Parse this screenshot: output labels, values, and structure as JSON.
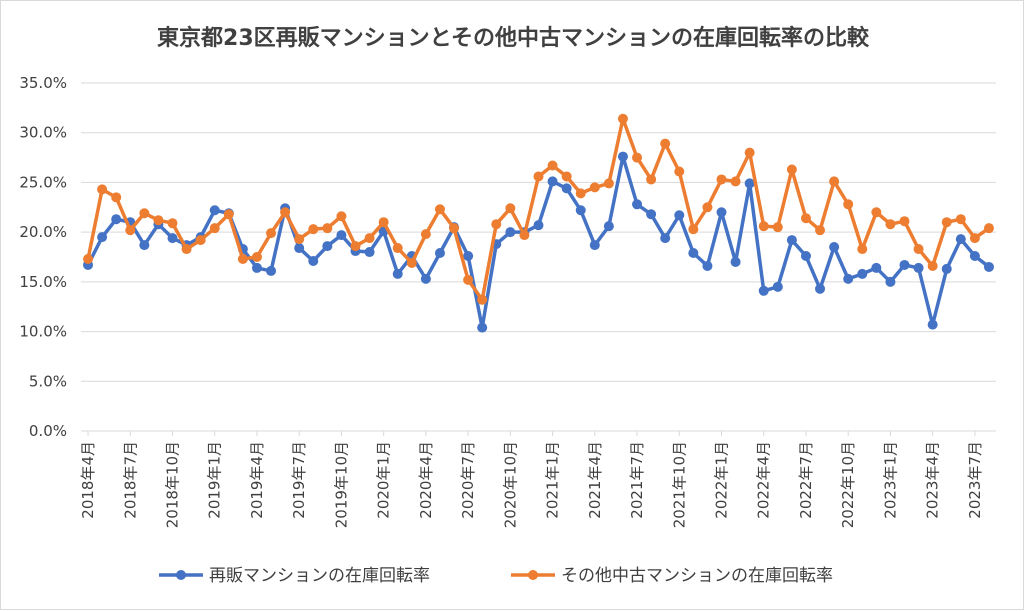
{
  "chart_data": {
    "type": "line",
    "title": "東京都23区再販マンションとその他中古マンションの在庫回転率の比較",
    "xlabel": "",
    "ylabel": "",
    "ylim": [
      0,
      35
    ],
    "yticks": [
      "0.0%",
      "5.0%",
      "10.0%",
      "15.0%",
      "20.0%",
      "25.0%",
      "30.0%",
      "35.0%"
    ],
    "ytick_values": [
      0,
      5,
      10,
      15,
      20,
      25,
      30,
      35
    ],
    "xtick_labels": [
      "2018年4月",
      "2018年7月",
      "2018年10月",
      "2019年1月",
      "2019年4月",
      "2019年7月",
      "2019年10月",
      "2020年1月",
      "2020年4月",
      "2020年7月",
      "2020年10月",
      "2021年1月",
      "2021年4月",
      "2021年7月",
      "2021年10月",
      "2022年1月",
      "2022年4月",
      "2022年7月",
      "2022年10月",
      "2023年1月",
      "2023年4月",
      "2023年7月"
    ],
    "xtick_every": 3,
    "grid": true,
    "legend_position": "bottom",
    "series": [
      {
        "name": "再販マンションの在庫回転率",
        "color": "#4472C4",
        "values": [
          16.7,
          19.5,
          21.3,
          21.0,
          18.7,
          20.8,
          19.4,
          18.7,
          19.5,
          22.2,
          21.9,
          18.3,
          16.4,
          16.1,
          22.4,
          18.4,
          17.1,
          18.6,
          19.7,
          18.1,
          18.0,
          20.1,
          15.8,
          17.6,
          15.3,
          17.9,
          20.5,
          17.6,
          10.4,
          18.8,
          20.0,
          20.0,
          20.7,
          25.1,
          24.4,
          22.2,
          18.7,
          20.6,
          27.6,
          22.8,
          21.8,
          19.4,
          21.7,
          17.9,
          16.6,
          22.0,
          17.0,
          24.9,
          14.1,
          14.5,
          19.2,
          17.6,
          14.3,
          18.5,
          15.3,
          15.8,
          16.4,
          15.0,
          16.7,
          16.4,
          10.7,
          16.3,
          19.3,
          17.6,
          16.5
        ]
      },
      {
        "name": "その他中古マンションの在庫回転率",
        "color": "#ED7D31",
        "values": [
          17.3,
          24.3,
          23.5,
          20.2,
          21.9,
          21.2,
          20.9,
          18.3,
          19.2,
          20.4,
          21.8,
          17.3,
          17.5,
          19.9,
          22.0,
          19.3,
          20.3,
          20.4,
          21.6,
          18.6,
          19.4,
          21.0,
          18.4,
          16.9,
          19.8,
          22.3,
          20.4,
          15.2,
          13.2,
          20.8,
          22.4,
          19.7,
          25.6,
          26.7,
          25.6,
          23.9,
          24.5,
          24.9,
          31.4,
          27.5,
          25.3,
          28.9,
          26.1,
          20.3,
          22.5,
          25.3,
          25.1,
          28.0,
          20.6,
          20.5,
          26.3,
          21.4,
          20.2,
          25.1,
          22.8,
          18.3,
          22.0,
          20.8,
          21.1,
          18.3,
          16.6,
          21.0,
          21.3,
          19.4,
          20.4
        ]
      }
    ]
  }
}
